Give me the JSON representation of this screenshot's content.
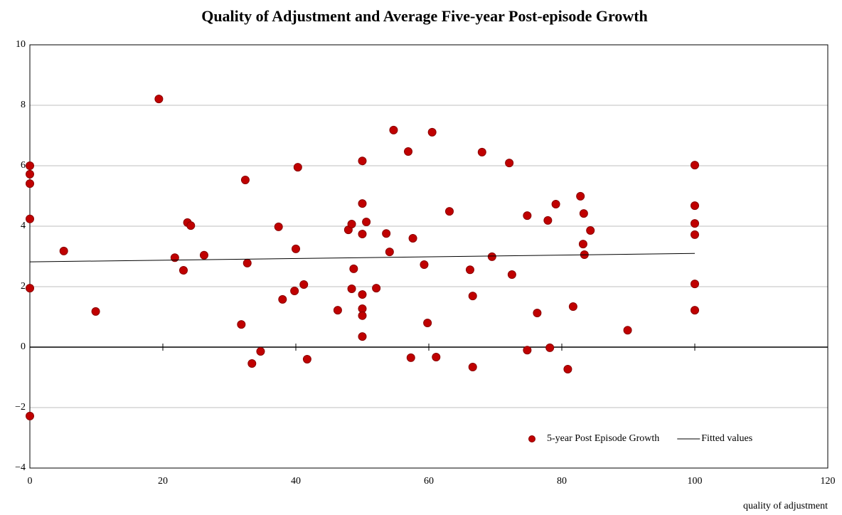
{
  "chart_data": {
    "type": "scatter",
    "title": "Quality of Adjustment and Average Five-year Post-episode Growth",
    "x_label": "quality of adjustment",
    "xlim": [
      0,
      120
    ],
    "xticks": [
      0,
      20,
      40,
      60,
      80,
      100,
      120
    ],
    "ylim": [
      -4,
      10
    ],
    "yticks": [
      {
        "value": -4,
        "label": "−4"
      },
      {
        "value": -2,
        "label": "−2"
      },
      0,
      2,
      4,
      6,
      8,
      10
    ],
    "grid": true,
    "legend": "lower right",
    "series": [
      {
        "name": "5-year Post Episode Growth",
        "type": "scatter",
        "color": "#c00000",
        "x": [
          0,
          0,
          0,
          0,
          0,
          0,
          5.1,
          9.9,
          19.4,
          21.8,
          23.1,
          23.7,
          24.2,
          26.2,
          31.8,
          32.4,
          32.7,
          33.4,
          34.7,
          37.4,
          38.0,
          39.8,
          40.0,
          40.3,
          41.2,
          41.7,
          46.3,
          47.9,
          48.4,
          48.4,
          48.7,
          50,
          50,
          50,
          50,
          50,
          50,
          50,
          50.6,
          52.1,
          53.6,
          54.1,
          54.7,
          56.9,
          57.3,
          57.6,
          59.3,
          59.8,
          60.5,
          61.1,
          63.1,
          66.2,
          66.6,
          66.6,
          68.0,
          69.5,
          72.1,
          72.5,
          74.8,
          74.8,
          76.3,
          77.9,
          78.2,
          79.1,
          80.9,
          81.7,
          82.8,
          83.3,
          83.2,
          83.4,
          84.3,
          89.9,
          100,
          100,
          100,
          100,
          100,
          100
        ],
        "values": [
          6.0,
          5.72,
          5.41,
          4.24,
          1.95,
          -2.28,
          3.18,
          1.18,
          8.21,
          2.96,
          2.54,
          4.12,
          4.02,
          3.04,
          0.75,
          5.53,
          2.78,
          -0.54,
          -0.14,
          3.98,
          1.58,
          1.86,
          3.25,
          5.95,
          2.07,
          -0.4,
          1.22,
          3.88,
          4.07,
          1.93,
          2.59,
          6.16,
          4.75,
          3.74,
          1.74,
          1.27,
          1.04,
          0.35,
          4.14,
          1.95,
          3.76,
          3.15,
          7.18,
          6.47,
          -0.35,
          3.6,
          2.73,
          0.8,
          7.11,
          -0.33,
          4.49,
          2.56,
          1.69,
          -0.66,
          6.45,
          2.99,
          6.09,
          2.4,
          4.35,
          -0.1,
          1.13,
          4.19,
          -0.02,
          4.73,
          -0.73,
          1.34,
          4.99,
          4.42,
          3.41,
          3.06,
          3.86,
          0.56,
          6.02,
          4.68,
          4.09,
          3.72,
          2.09,
          1.22
        ]
      },
      {
        "name": "Fitted values",
        "type": "line",
        "color": "#000000",
        "x": [
          0,
          100
        ],
        "values": [
          2.82,
          3.1
        ]
      }
    ]
  }
}
